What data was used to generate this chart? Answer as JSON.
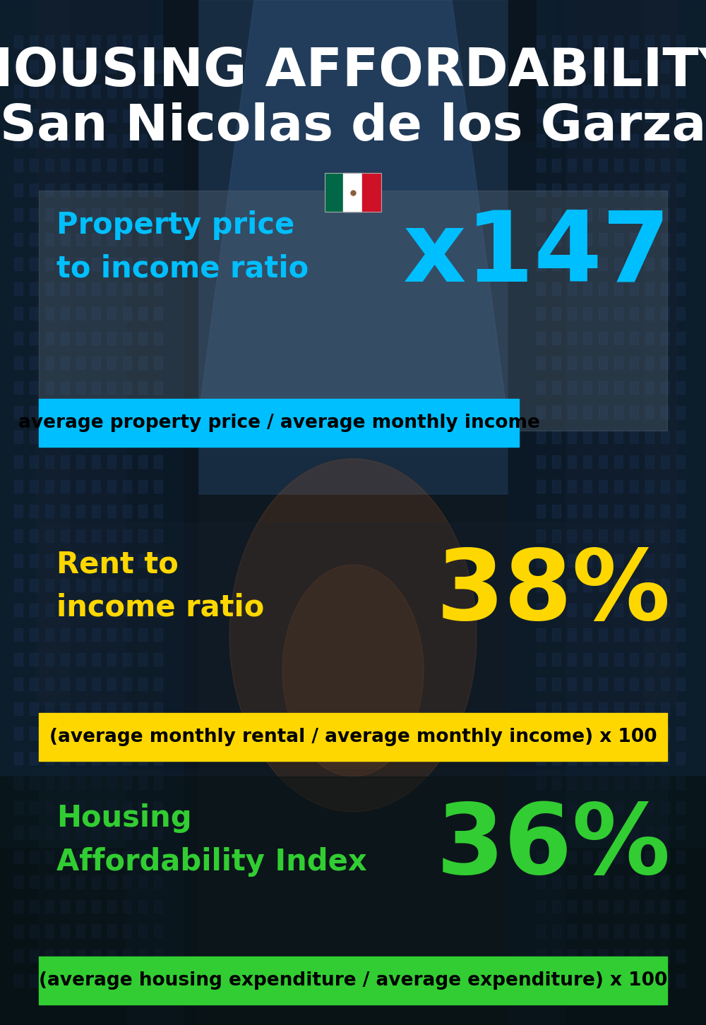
{
  "title_line1": "HOUSING AFFORDABILITY",
  "title_line2": "San Nicolas de los Garza",
  "section1_label": "Property price\nto income ratio",
  "section1_value": "x147",
  "section1_formula": "average property price / average monthly income",
  "section1_label_color": "#00BFFF",
  "section1_value_color": "#00BFFF",
  "section1_banner_color": "#00BFFF",
  "section2_label": "Rent to\nincome ratio",
  "section2_value": "38%",
  "section2_formula": "(average monthly rental / average monthly income) x 100",
  "section2_label_color": "#FFD700",
  "section2_value_color": "#FFD700",
  "section2_banner_color": "#FFD700",
  "section3_label": "Housing\nAffordability Index",
  "section3_value": "36%",
  "section3_formula": "(average housing expenditure / average expenditure) x 100",
  "section3_label_color": "#32CD32",
  "section3_value_color": "#32CD32",
  "section3_banner_color": "#32CD32",
  "title1_fontsize": 54,
  "title2_fontsize": 52,
  "label_fontsize": 30,
  "value_fontsize": 100,
  "formula_fontsize": 19,
  "fig_width": 10.0,
  "fig_height": 14.52,
  "dpi": 100
}
